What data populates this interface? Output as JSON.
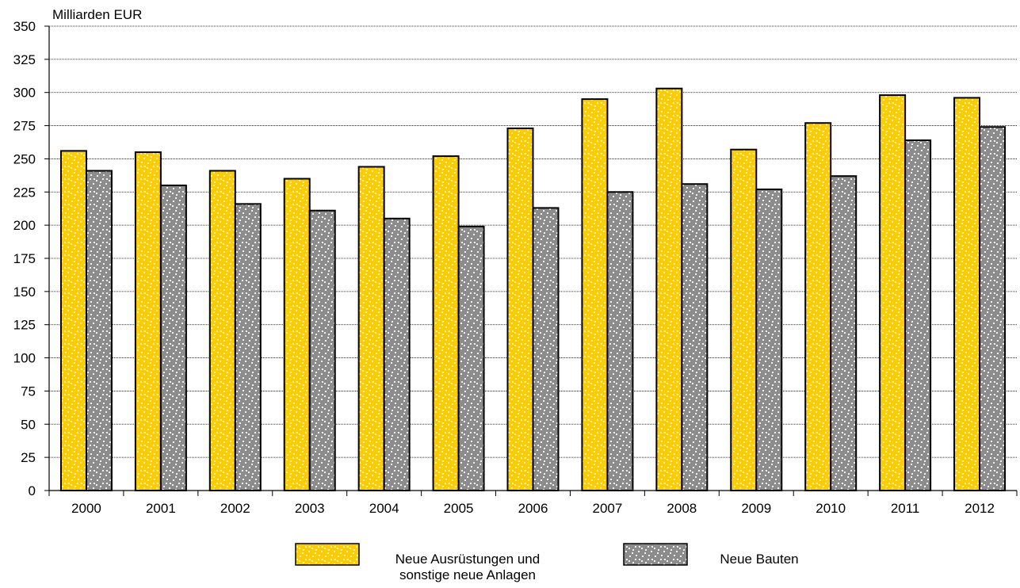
{
  "colors": {
    "series_1": "#FFCC00",
    "series_1_dots": "#FFF4C8",
    "series_2": "#8C8C8C",
    "series_2_dots": "#EFEFEF",
    "bar_stroke": "#000000",
    "gridline": "#000000"
  },
  "chart_data": {
    "type": "bar",
    "ylabel": "Milliarden EUR",
    "ylim": [
      0,
      350
    ],
    "ytick_step": 25,
    "grid": true,
    "legend_position": "bottom",
    "categories": [
      "2000",
      "2001",
      "2002",
      "2003",
      "2004",
      "2005",
      "2006",
      "2007",
      "2008",
      "2009",
      "2010",
      "2011",
      "2012"
    ],
    "series": [
      {
        "name": "Neue Ausrüstungen und sonstige neue Anlagen",
        "name_lines": [
          "Neue Ausrüstungen und",
          "sonstige neue Anlagen"
        ],
        "values": [
          256,
          255,
          241,
          235,
          244,
          252,
          273,
          295,
          303,
          257,
          277,
          298,
          296
        ]
      },
      {
        "name": "Neue Bauten",
        "name_lines": [
          "Neue Bauten"
        ],
        "values": [
          241,
          230,
          216,
          211,
          205,
          199,
          213,
          225,
          231,
          227,
          237,
          264,
          274
        ]
      }
    ]
  }
}
